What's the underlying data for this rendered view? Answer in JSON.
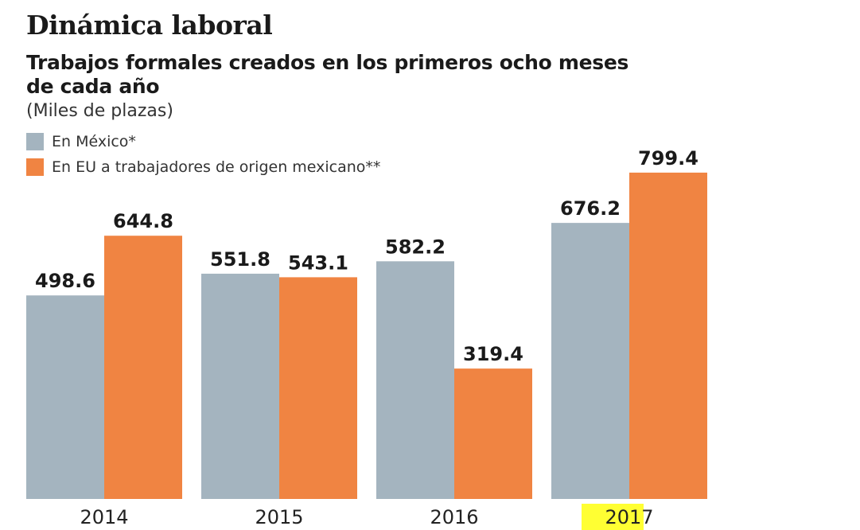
{
  "chart_data": {
    "type": "bar",
    "title": "Dinámica laboral",
    "subtitle": "Trabajos formales creados en los primeros ocho meses de cada año",
    "units": "(Miles de plazas)",
    "categories": [
      "2014",
      "2015",
      "2016",
      "2017"
    ],
    "highlighted_category": "2017",
    "highlight_color": "#ffff33",
    "series": [
      {
        "name": "En México*",
        "color": "#a4b4bf",
        "values": [
          498.6,
          551.8,
          582.2,
          676.2
        ]
      },
      {
        "name": "En EU a trabajadores de origen mexicano**",
        "color": "#f08442",
        "values": [
          644.8,
          543.1,
          319.4,
          799.4
        ]
      }
    ],
    "value_labels": [
      [
        "498.6",
        "551.8",
        "582.2",
        "676.2"
      ],
      [
        "644.8",
        "543.1",
        "319.4",
        "799.4"
      ]
    ],
    "ylim": [
      0,
      820
    ],
    "grid": false,
    "legend_placement": "top-left"
  }
}
